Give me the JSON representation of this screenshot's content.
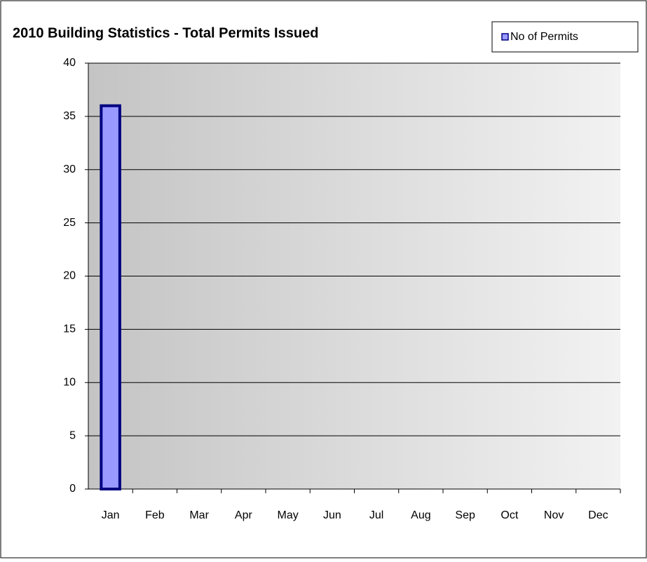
{
  "chart_data": {
    "type": "bar",
    "title": "2010 Building Statistics - Total Permits Issued",
    "categories": [
      "Jan",
      "Feb",
      "Mar",
      "Apr",
      "May",
      "Jun",
      "Jul",
      "Aug",
      "Sep",
      "Oct",
      "Nov",
      "Dec"
    ],
    "series": [
      {
        "name": "No of Permits",
        "color": "#9999ff",
        "values": [
          36,
          null,
          null,
          null,
          null,
          null,
          null,
          null,
          null,
          null,
          null,
          null
        ]
      }
    ],
    "ylim": [
      0,
      40
    ],
    "yticks": [
      0,
      5,
      10,
      15,
      20,
      25,
      30,
      35,
      40
    ],
    "grid": true,
    "legend": "top-right"
  }
}
